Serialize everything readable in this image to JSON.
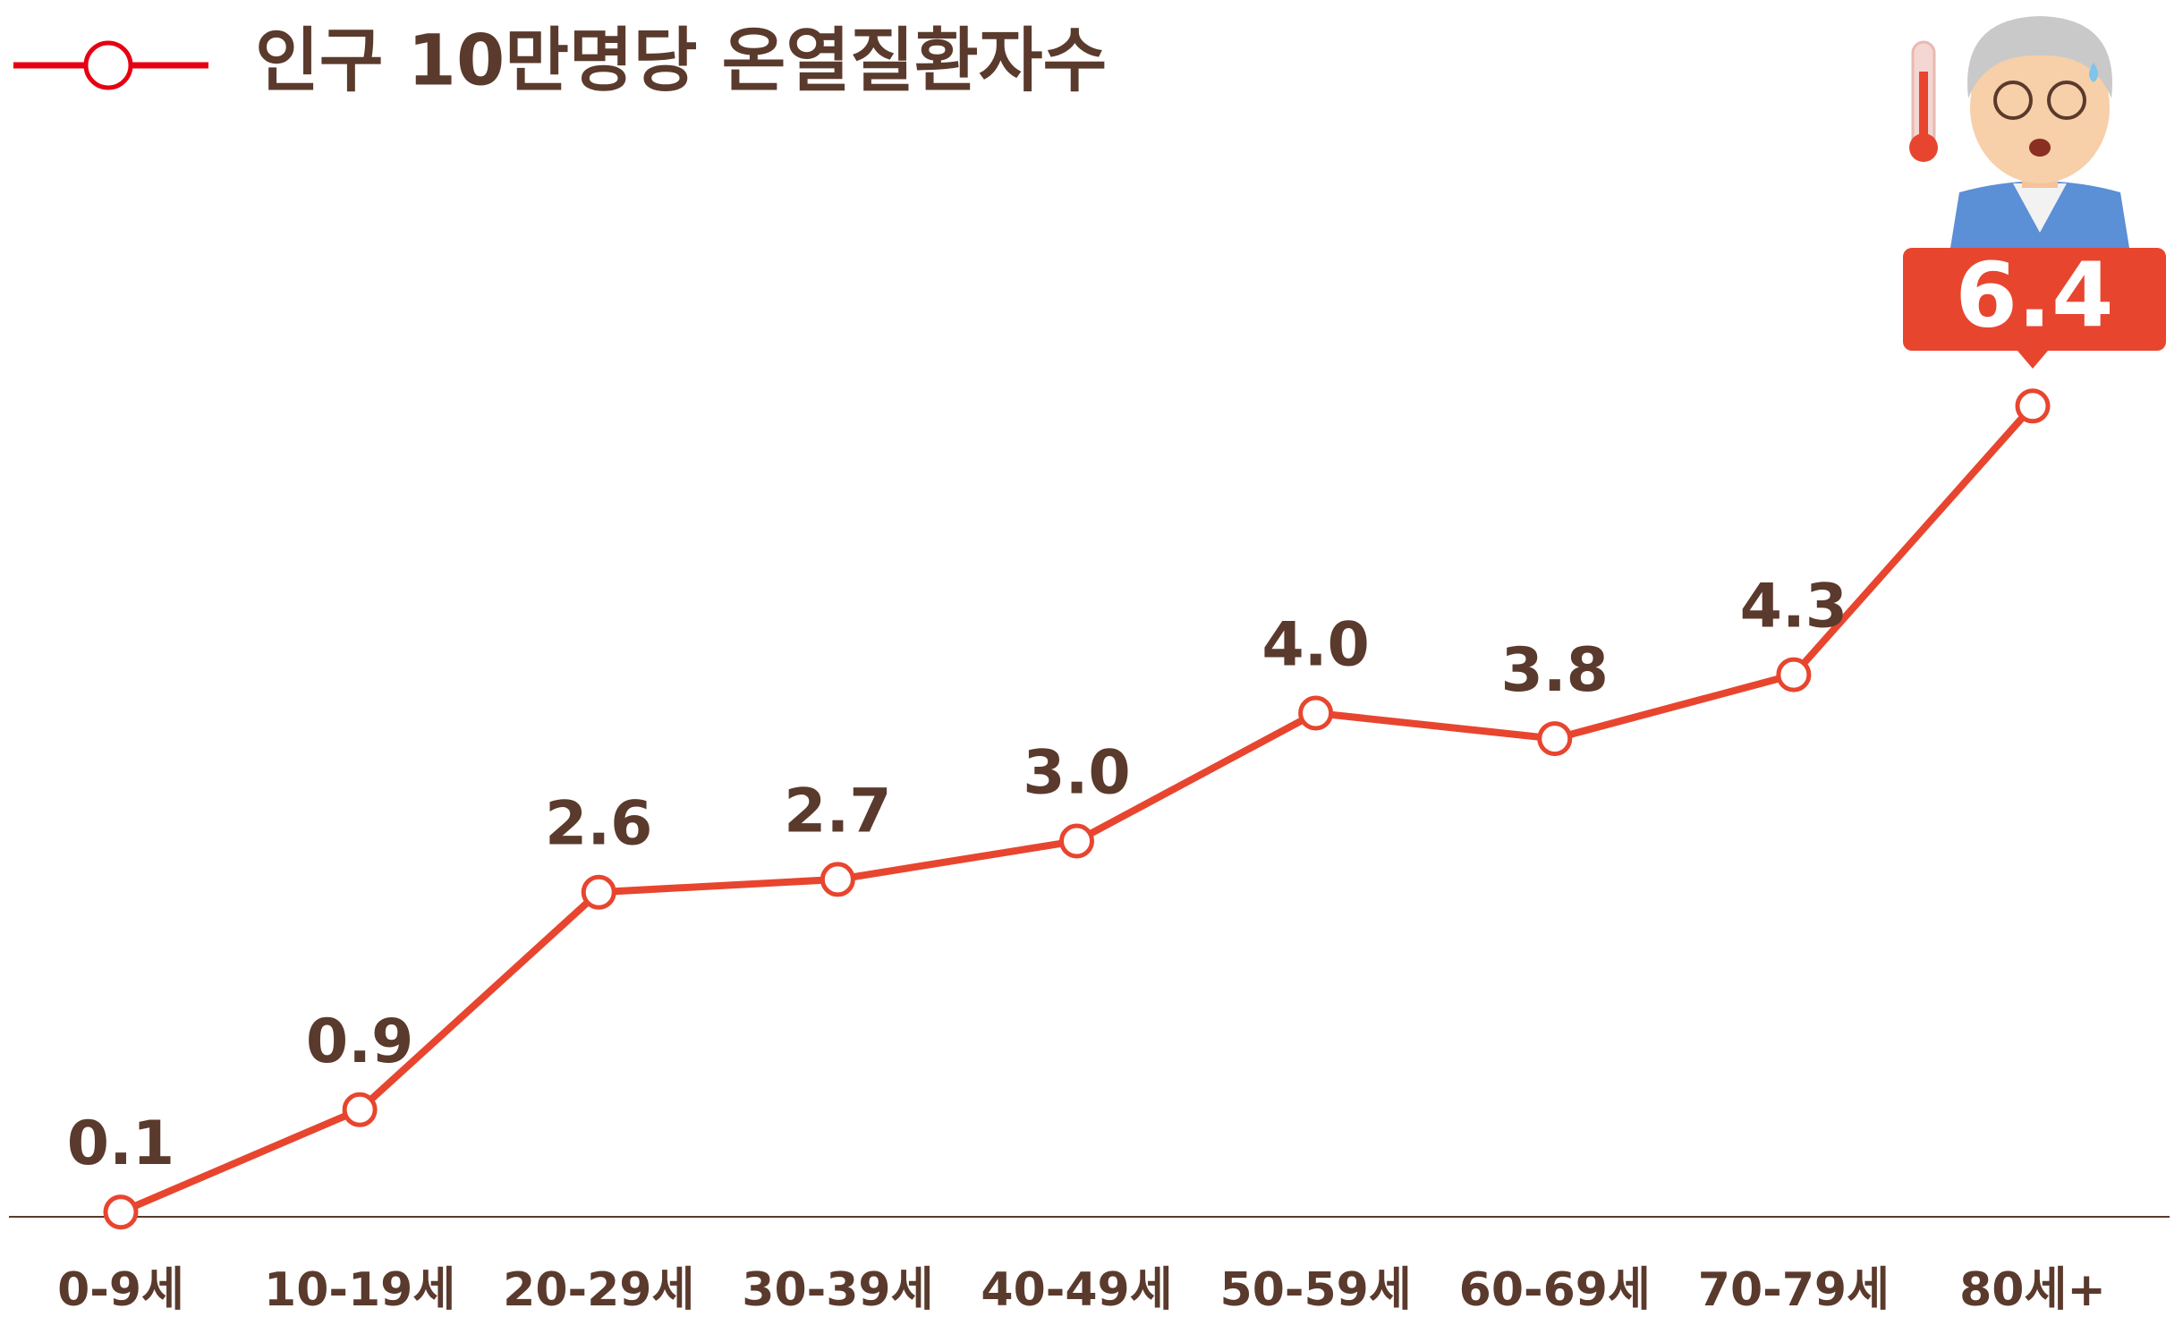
{
  "chart_data": {
    "type": "line",
    "categories": [
      "0-9세",
      "10-19세",
      "20-29세",
      "30-39세",
      "40-49세",
      "50-59세",
      "60-69세",
      "70-79세",
      "80세+"
    ],
    "series": [
      {
        "name": "인구 10만명당 온열질환자수",
        "color": "#e8452f",
        "values": [
          0.1,
          0.9,
          2.6,
          2.7,
          3.0,
          4.0,
          3.8,
          4.3,
          6.4
        ],
        "value_labels": [
          "0.1",
          "0.9",
          "2.6",
          "2.7",
          "3.0",
          "4.0",
          "3.8",
          "4.3",
          "6.4"
        ]
      }
    ],
    "ylim": [
      0,
      7
    ],
    "highlight_color": "#e8452f",
    "legend_color": "#e60012"
  }
}
